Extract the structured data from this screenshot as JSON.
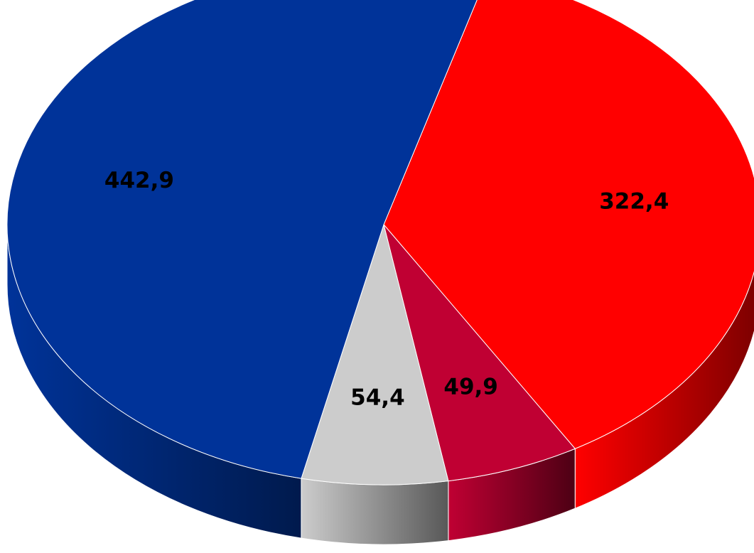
{
  "chart_data": {
    "type": "pie",
    "title": "",
    "style": "3d",
    "start_angle_deg": -74,
    "direction": "clockwise",
    "legend": "none",
    "slices": [
      {
        "value": 322.4,
        "label": "322,4",
        "color": "#ff0000",
        "side_color": "#7a0000"
      },
      {
        "value": 49.9,
        "label": "49,9",
        "color": "#c00033",
        "side_color": "#4d0014"
      },
      {
        "value": 54.4,
        "label": "54,4",
        "color": "#cccccc",
        "side_color": "#585858"
      },
      {
        "value": 442.9,
        "label": "442,9",
        "color": "#003399",
        "side_color": "#001a4d"
      }
    ]
  }
}
